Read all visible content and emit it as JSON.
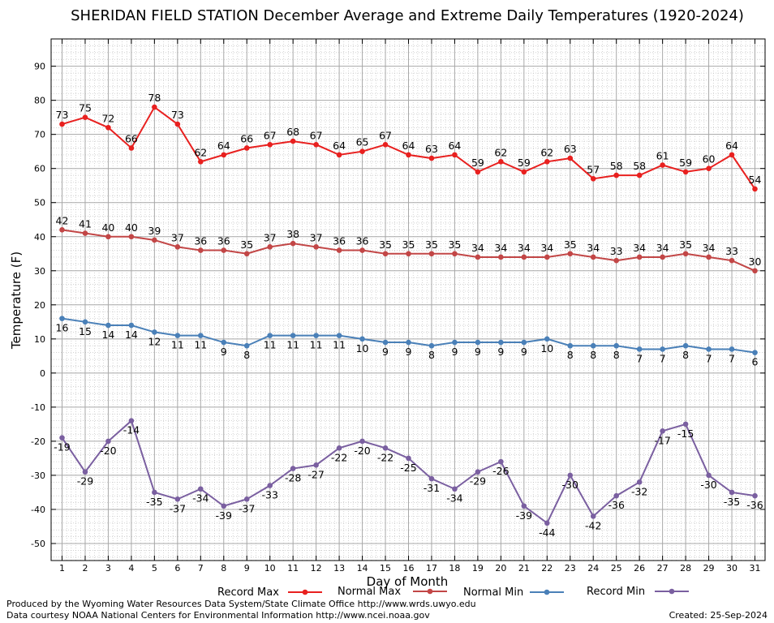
{
  "chart_data": {
    "type": "line",
    "title": "SHERIDAN FIELD STATION December Average and Extreme Daily Temperatures (1920-2024)",
    "xlabel": "Day of Month",
    "ylabel": "Temperature (F)",
    "ylim": [
      -55,
      98
    ],
    "yticks": [
      -50,
      -40,
      -30,
      -20,
      -10,
      0,
      10,
      20,
      30,
      40,
      50,
      60,
      70,
      80,
      90
    ],
    "x": [
      1,
      2,
      3,
      4,
      5,
      6,
      7,
      8,
      9,
      10,
      11,
      12,
      13,
      14,
      15,
      16,
      17,
      18,
      19,
      20,
      21,
      22,
      23,
      24,
      25,
      26,
      27,
      28,
      29,
      30,
      31
    ],
    "grid": true,
    "legend_position": "bottom",
    "series": [
      {
        "name": "Record Max",
        "color": "#e8201f",
        "label_pos": "above",
        "values": [
          73,
          75,
          72,
          66,
          78,
          73,
          62,
          64,
          66,
          67,
          68,
          67,
          64,
          65,
          67,
          64,
          63,
          64,
          59,
          62,
          59,
          62,
          63,
          57,
          58,
          58,
          61,
          59,
          60,
          64,
          54
        ]
      },
      {
        "name": "Normal Max",
        "color": "#c24646",
        "label_pos": "above",
        "values": [
          42,
          41,
          40,
          40,
          39,
          37,
          36,
          36,
          35,
          37,
          38,
          37,
          36,
          36,
          35,
          35,
          35,
          35,
          34,
          34,
          34,
          34,
          35,
          34,
          33,
          34,
          34,
          35,
          34,
          33,
          30
        ]
      },
      {
        "name": "Normal Min",
        "color": "#4a80b8",
        "label_pos": "below",
        "values": [
          16,
          15,
          14,
          14,
          12,
          11,
          11,
          9,
          8,
          11,
          11,
          11,
          11,
          10,
          9,
          9,
          8,
          9,
          9,
          9,
          9,
          10,
          8,
          8,
          8,
          7,
          7,
          8,
          7,
          7,
          6
        ]
      },
      {
        "name": "Record Min",
        "color": "#7a5fa0",
        "label_pos": "below",
        "values": [
          -19,
          -29,
          -20,
          -14,
          -35,
          -37,
          -34,
          -39,
          -37,
          -33,
          -28,
          -27,
          -22,
          -20,
          -22,
          -25,
          -31,
          -34,
          -29,
          -26,
          -39,
          -44,
          -30,
          -42,
          -36,
          -32,
          -17,
          -15,
          -30,
          -35,
          -36
        ]
      }
    ]
  },
  "footer": {
    "produced_by": "Produced by the Wyoming Water Resources Data System/State Climate Office http://www.wrds.uwyo.edu",
    "courtesy": "Data courtesy NOAA National Centers for Environmental Information http://www.ncei.noaa.gov",
    "created": "Created:  25-Sep-2024"
  }
}
